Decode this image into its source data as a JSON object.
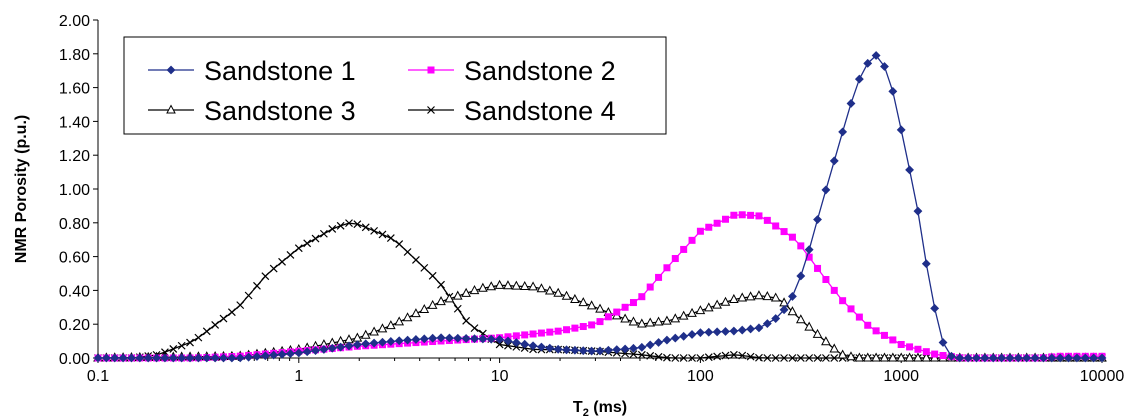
{
  "chart_data": {
    "type": "line",
    "title": "",
    "xlabel_main": "T",
    "xlabel_sub": "2",
    "xlabel_rest": " (ms)",
    "ylabel": "NMR Porosity (p.u.)",
    "x_scale": "log",
    "xlim": [
      0.1,
      10000
    ],
    "ylim": [
      0,
      2.0
    ],
    "x_ticks": [
      "0.1",
      "1",
      "10",
      "100",
      "1000",
      "10000"
    ],
    "y_ticks": [
      "0.00",
      "0.20",
      "0.40",
      "0.60",
      "0.80",
      "1.00",
      "1.20",
      "1.40",
      "1.60",
      "1.80",
      "2.00"
    ],
    "grid": false,
    "legend_position": "top-left",
    "series": [
      {
        "name": "Sandstone 1",
        "color": "#1F2F8A",
        "marker": "diamond",
        "points": [
          [
            0.1,
            0
          ],
          [
            0.5,
            0
          ],
          [
            1,
            0.03
          ],
          [
            2,
            0.08
          ],
          [
            3,
            0.1
          ],
          [
            5,
            0.12
          ],
          [
            10,
            0.11
          ],
          [
            15,
            0.07
          ],
          [
            20,
            0.05
          ],
          [
            30,
            0.04
          ],
          [
            50,
            0.06
          ],
          [
            70,
            0.11
          ],
          [
            100,
            0.15
          ],
          [
            150,
            0.16
          ],
          [
            200,
            0.18
          ],
          [
            250,
            0.25
          ],
          [
            300,
            0.4
          ],
          [
            350,
            0.65
          ],
          [
            400,
            0.9
          ],
          [
            500,
            1.3
          ],
          [
            600,
            1.62
          ],
          [
            700,
            1.77
          ],
          [
            750,
            1.79
          ],
          [
            800,
            1.77
          ],
          [
            900,
            1.6
          ],
          [
            1000,
            1.35
          ],
          [
            1200,
            0.9
          ],
          [
            1400,
            0.4
          ],
          [
            1600,
            0.1
          ],
          [
            1800,
            0
          ],
          [
            10000,
            0
          ]
        ]
      },
      {
        "name": "Sandstone 2",
        "color": "#FF00FF",
        "marker": "square",
        "points": [
          [
            0.1,
            0
          ],
          [
            0.3,
            0
          ],
          [
            0.5,
            0.01
          ],
          [
            1,
            0.04
          ],
          [
            2,
            0.07
          ],
          [
            5,
            0.1
          ],
          [
            10,
            0.12
          ],
          [
            20,
            0.16
          ],
          [
            30,
            0.2
          ],
          [
            50,
            0.35
          ],
          [
            70,
            0.55
          ],
          [
            100,
            0.75
          ],
          [
            150,
            0.85
          ],
          [
            200,
            0.84
          ],
          [
            300,
            0.7
          ],
          [
            400,
            0.5
          ],
          [
            500,
            0.35
          ],
          [
            700,
            0.18
          ],
          [
            1000,
            0.08
          ],
          [
            1500,
            0.02
          ],
          [
            2000,
            0
          ],
          [
            5000,
            0
          ],
          [
            6000,
            0.01
          ],
          [
            10000,
            0.01
          ]
        ]
      },
      {
        "name": "Sandstone 3",
        "color": "#000000",
        "marker": "triangle",
        "points": [
          [
            0.1,
            0
          ],
          [
            0.5,
            0.01
          ],
          [
            1,
            0.05
          ],
          [
            2,
            0.12
          ],
          [
            3,
            0.2
          ],
          [
            5,
            0.33
          ],
          [
            8,
            0.41
          ],
          [
            10,
            0.43
          ],
          [
            15,
            0.42
          ],
          [
            20,
            0.38
          ],
          [
            30,
            0.3
          ],
          [
            40,
            0.24
          ],
          [
            50,
            0.2
          ],
          [
            70,
            0.22
          ],
          [
            100,
            0.28
          ],
          [
            150,
            0.35
          ],
          [
            200,
            0.37
          ],
          [
            250,
            0.35
          ],
          [
            300,
            0.25
          ],
          [
            400,
            0.12
          ],
          [
            500,
            0.02
          ],
          [
            600,
            0
          ],
          [
            10000,
            0
          ]
        ]
      },
      {
        "name": "Sandstone 4",
        "color": "#000000",
        "marker": "x",
        "points": [
          [
            0.1,
            0
          ],
          [
            0.15,
            0
          ],
          [
            0.2,
            0.02
          ],
          [
            0.3,
            0.1
          ],
          [
            0.5,
            0.3
          ],
          [
            0.7,
            0.5
          ],
          [
            1,
            0.65
          ],
          [
            1.5,
            0.77
          ],
          [
            1.8,
            0.8
          ],
          [
            2,
            0.79
          ],
          [
            3,
            0.7
          ],
          [
            5,
            0.45
          ],
          [
            7,
            0.2
          ],
          [
            10,
            0.08
          ],
          [
            15,
            0.05
          ],
          [
            20,
            0.05
          ],
          [
            30,
            0.04
          ],
          [
            50,
            0.02
          ],
          [
            70,
            0
          ],
          [
            100,
            0
          ],
          [
            150,
            0.02
          ],
          [
            200,
            0
          ],
          [
            300,
            0
          ],
          [
            10000,
            0
          ]
        ]
      }
    ]
  }
}
